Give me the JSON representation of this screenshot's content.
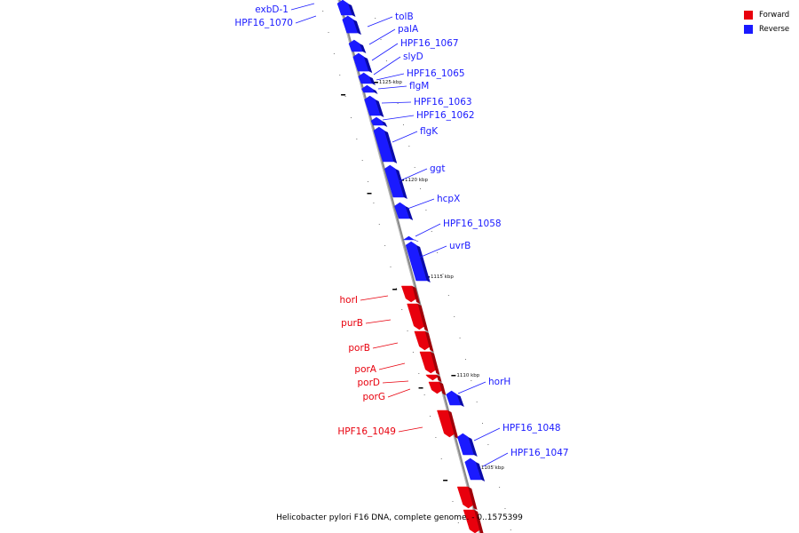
{
  "legend": {
    "forward_label": "Forward",
    "reverse_label": "Reverse",
    "forward_color": "#e8000d",
    "reverse_color": "#1a1aff"
  },
  "caption": "Helicobacter pylori F16 DNA, complete genome. - 0..1575399",
  "ticks": [
    "1125 kbp",
    "1120 kbp",
    "1115 kbp",
    "1110 kbp",
    "1105 kbp"
  ],
  "genes": [
    {
      "name": "exbD-1",
      "strand": "reverse"
    },
    {
      "name": "HPF16_1070",
      "strand": "reverse"
    },
    {
      "name": "tolB",
      "strand": "reverse"
    },
    {
      "name": "palA",
      "strand": "reverse"
    },
    {
      "name": "HPF16_1067",
      "strand": "reverse"
    },
    {
      "name": "slyD",
      "strand": "reverse"
    },
    {
      "name": "HPF16_1065",
      "strand": "reverse"
    },
    {
      "name": "flgM",
      "strand": "reverse"
    },
    {
      "name": "HPF16_1063",
      "strand": "reverse"
    },
    {
      "name": "HPF16_1062",
      "strand": "reverse"
    },
    {
      "name": "flgK",
      "strand": "reverse"
    },
    {
      "name": "ggt",
      "strand": "reverse"
    },
    {
      "name": "hcpX",
      "strand": "reverse"
    },
    {
      "name": "HPF16_1058",
      "strand": "reverse"
    },
    {
      "name": "uvrB",
      "strand": "reverse"
    },
    {
      "name": "horI",
      "strand": "forward"
    },
    {
      "name": "purB",
      "strand": "forward"
    },
    {
      "name": "porB",
      "strand": "forward"
    },
    {
      "name": "porA",
      "strand": "forward"
    },
    {
      "name": "porD",
      "strand": "forward"
    },
    {
      "name": "porG",
      "strand": "forward"
    },
    {
      "name": "horH",
      "strand": "reverse"
    },
    {
      "name": "HPF16_1049",
      "strand": "forward"
    },
    {
      "name": "HPF16_1048",
      "strand": "reverse"
    },
    {
      "name": "HPF16_1047",
      "strand": "reverse"
    }
  ]
}
